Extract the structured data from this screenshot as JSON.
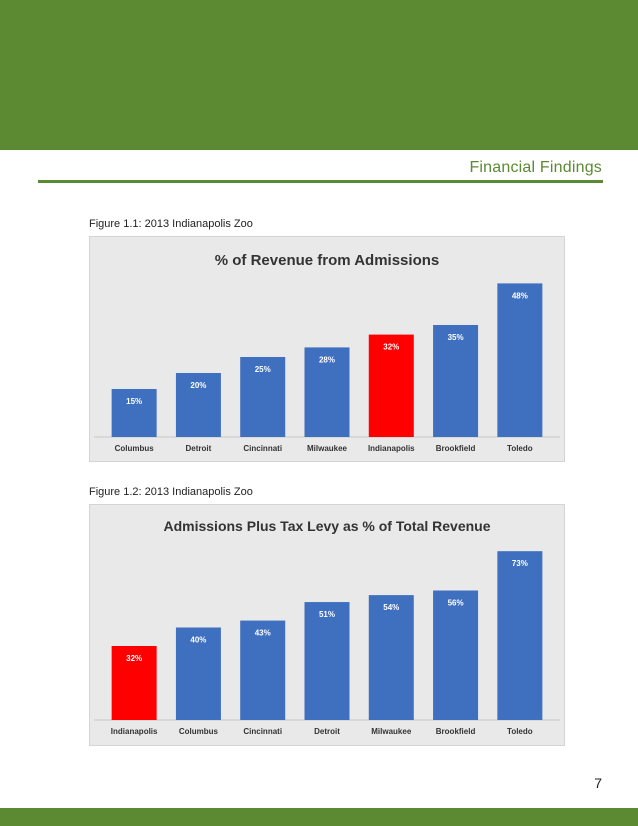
{
  "header": {
    "section_title": "Financial Findings"
  },
  "figures": [
    {
      "caption": "Figure 1.1: 2013 Indianapolis Zoo"
    },
    {
      "caption": "Figure 1.2: 2013 Indianapolis Zoo"
    }
  ],
  "footer": {
    "page_number": "7"
  },
  "colors": {
    "brand_green": "#5b8a32",
    "bar_blue": "#3f6fbf",
    "bar_highlight": "#ff0000"
  },
  "chart_data": [
    {
      "type": "bar",
      "title": "% of Revenue from Admissions",
      "categories": [
        "Columbus",
        "Detroit",
        "Cincinnati",
        "Milwaukee",
        "Indianapolis",
        "Brookfield",
        "Toledo"
      ],
      "values": [
        15,
        20,
        25,
        28,
        32,
        35,
        48
      ],
      "value_labels": [
        "15%",
        "20%",
        "25%",
        "28%",
        "32%",
        "35%",
        "48%"
      ],
      "highlight": "Indianapolis",
      "ylim": [
        0,
        55
      ],
      "grid": false,
      "legend": "none"
    },
    {
      "type": "bar",
      "title": "Admissions Plus Tax Levy as % of Total Revenue",
      "categories": [
        "Indianapolis",
        "Columbus",
        "Cincinnati",
        "Detroit",
        "Milwaukee",
        "Brookfield",
        "Toledo"
      ],
      "values": [
        32,
        40,
        43,
        51,
        54,
        56,
        73
      ],
      "value_labels": [
        "32%",
        "40%",
        "43%",
        "51%",
        "54%",
        "56%",
        "73%"
      ],
      "highlight": "Indianapolis",
      "ylim": [
        0,
        80
      ],
      "grid": false,
      "legend": "none"
    }
  ]
}
